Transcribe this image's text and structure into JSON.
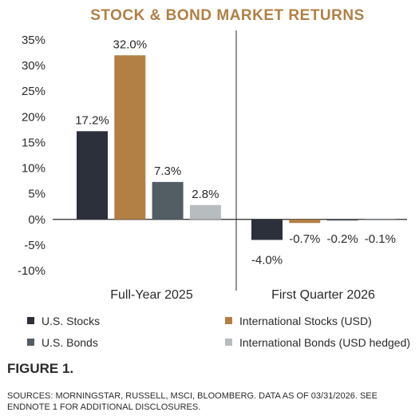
{
  "chart_data": {
    "type": "bar",
    "title": "STOCK & BOND MARKET RETURNS",
    "groups": [
      "Full-Year 2025",
      "First Quarter 2026"
    ],
    "series": [
      {
        "name": "U.S. Stocks",
        "color": "#2b303b",
        "values": [
          17.2,
          -4.0
        ],
        "labels": [
          "17.2%",
          "-4.0%"
        ]
      },
      {
        "name": "International Stocks (USD)",
        "color": "#b27f44",
        "values": [
          32.0,
          -0.7
        ],
        "labels": [
          "32.0%",
          "-0.7%"
        ]
      },
      {
        "name": "U.S. Bonds",
        "color": "#535d64",
        "values": [
          7.3,
          -0.2
        ],
        "labels": [
          "7.3%",
          "-0.2%"
        ]
      },
      {
        "name": "International Bonds (USD hedged)",
        "color": "#b7bcbf",
        "values": [
          2.8,
          -0.1
        ],
        "labels": [
          "2.8%",
          "-0.1%"
        ]
      }
    ],
    "y_ticks": [
      35,
      30,
      25,
      20,
      15,
      10,
      5,
      0,
      -5,
      -10
    ],
    "y_tick_labels": [
      "35%",
      "30%",
      "25%",
      "20%",
      "15%",
      "10%",
      "5%",
      "0%",
      "-5%",
      "-10%"
    ],
    "ylim": [
      -10,
      35
    ],
    "legend_position": "bottom",
    "grid": false
  },
  "figure_label": "FIGURE 1.",
  "sources": "SOURCES: MORNINGSTAR, RUSSELL, MSCI, BLOOMBERG. DATA AS OF 03/31/2026. SEE ENDNOTE 1 FOR ADDITIONAL DISCLOSURES."
}
